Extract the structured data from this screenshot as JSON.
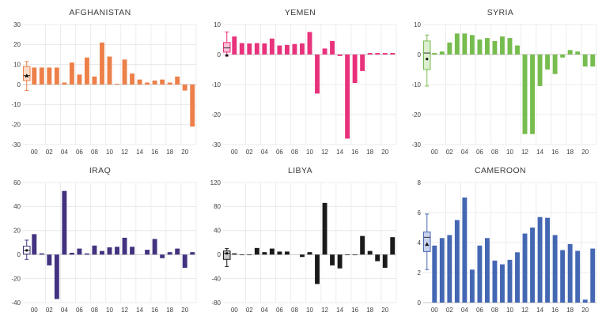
{
  "page": {
    "background": "#ffffff"
  },
  "chart_data": [
    {
      "type": "bar",
      "title": "AFGHANISTAN",
      "color": "#ED8049",
      "ylim": [
        -30,
        30
      ],
      "ytick": 10,
      "xticklabels": [
        "00",
        "02",
        "04",
        "06",
        "08",
        "10",
        "12",
        "14",
        "16",
        "18",
        "20"
      ],
      "years": [
        "00",
        "01",
        "02",
        "03",
        "04",
        "05",
        "06",
        "07",
        "08",
        "09",
        "10",
        "11",
        "12",
        "13",
        "14",
        "15",
        "16",
        "17",
        "18",
        "19",
        "20",
        "21"
      ],
      "values": [
        8.5,
        8.5,
        8.5,
        8.5,
        1,
        11,
        5,
        13.5,
        4,
        21,
        14,
        0.4,
        12.5,
        5.5,
        2.5,
        1,
        2,
        2.5,
        1,
        4,
        -3,
        -21
      ],
      "box": {
        "lo": -3,
        "q1": 2,
        "med": 4.5,
        "q3": 9,
        "hi": 11.5,
        "marker": 4.5,
        "marker_shape": "triangle",
        "fill": "#FBDDC9",
        "stroke": "#ED8049"
      }
    },
    {
      "type": "bar",
      "title": "YEMEN",
      "color": "#E8327C",
      "ylim": [
        -30,
        10
      ],
      "ytick": 10,
      "xticklabels": [
        "00",
        "02",
        "04",
        "06",
        "08",
        "10",
        "12",
        "14",
        "16",
        "18",
        "20"
      ],
      "years": [
        "00",
        "01",
        "02",
        "03",
        "04",
        "05",
        "06",
        "07",
        "08",
        "09",
        "10",
        "11",
        "12",
        "13",
        "14",
        "15",
        "16",
        "17",
        "18",
        "19",
        "20",
        "21"
      ],
      "values": [
        6,
        3.8,
        3.7,
        3.8,
        3.7,
        5.3,
        3,
        3.2,
        3.5,
        3.7,
        7.5,
        -13,
        2,
        4.5,
        -0.5,
        -28,
        -9.5,
        -5.5,
        0.5,
        0.5,
        0.5,
        0.5
      ],
      "box": {
        "lo": -0.5,
        "q1": 0.8,
        "med": 2.2,
        "q3": 4,
        "hi": 7.5,
        "marker": -0.3,
        "marker_shape": "dot",
        "fill": "#F8C0D8",
        "stroke": "#E8327C"
      }
    },
    {
      "type": "bar",
      "title": "SYRIA",
      "color": "#77BC4F",
      "ylim": [
        -30,
        10
      ],
      "ytick": 10,
      "xticklabels": [
        "00",
        "02",
        "04",
        "06",
        "08",
        "10",
        "12",
        "14",
        "16",
        "18",
        "20"
      ],
      "years": [
        "00",
        "01",
        "02",
        "03",
        "04",
        "05",
        "06",
        "07",
        "08",
        "09",
        "10",
        "11",
        "12",
        "13",
        "14",
        "15",
        "16",
        "17",
        "18",
        "19",
        "20",
        "21"
      ],
      "values": [
        0.5,
        1,
        4,
        7,
        7,
        6.5,
        5,
        5.5,
        4.5,
        6,
        5.5,
        3,
        -26.5,
        -26.5,
        -10.5,
        -5,
        -6.5,
        -1,
        1.5,
        1,
        -4,
        -4
      ],
      "box": {
        "lo": -10.5,
        "q1": -5,
        "med": 0.5,
        "q3": 4.5,
        "hi": 6.5,
        "marker": -1.5,
        "marker_shape": "dot",
        "fill": "#DCEFD0",
        "stroke": "#77BC4F"
      }
    },
    {
      "type": "bar",
      "title": "IRAQ",
      "color": "#433280",
      "ylim": [
        -40,
        60
      ],
      "ytick": 20,
      "xticklabels": [
        "00",
        "02",
        "04",
        "06",
        "08",
        "10",
        "12",
        "14",
        "16",
        "18",
        "20"
      ],
      "years": [
        "00",
        "01",
        "02",
        "03",
        "04",
        "05",
        "06",
        "07",
        "08",
        "09",
        "10",
        "11",
        "12",
        "13",
        "14",
        "15",
        "16",
        "17",
        "18",
        "19",
        "20",
        "21"
      ],
      "values": [
        17,
        1,
        -9,
        -37,
        53,
        1.5,
        5,
        1,
        7.5,
        3,
        6,
        6.5,
        14,
        6.5,
        0,
        4,
        13,
        -3,
        2,
        5,
        -11,
        2
      ],
      "box": {
        "lo": -4,
        "q1": 0.5,
        "med": 3.5,
        "q3": 7,
        "hi": 12,
        "marker": 3.5,
        "marker_shape": "dot",
        "fill": "#ffffff",
        "stroke": "#433280"
      }
    },
    {
      "type": "bar",
      "title": "LIBYA",
      "color": "#1A1A1A",
      "ylim": [
        -80,
        120
      ],
      "ytick": 40,
      "xticklabels": [
        "00",
        "02",
        "04",
        "06",
        "08",
        "10",
        "12",
        "14",
        "16",
        "18",
        "20"
      ],
      "years": [
        "00",
        "01",
        "02",
        "03",
        "04",
        "05",
        "06",
        "07",
        "08",
        "09",
        "10",
        "11",
        "12",
        "13",
        "14",
        "15",
        "16",
        "17",
        "18",
        "19",
        "20",
        "21"
      ],
      "values": [
        2,
        -1,
        -1,
        11,
        4,
        10,
        5,
        5,
        0,
        -4,
        4,
        -49,
        86,
        -18,
        -23,
        -1,
        -1,
        31,
        6,
        -11,
        -22,
        29
      ],
      "box": {
        "lo": -20,
        "q1": -8,
        "med": 2,
        "q3": 6,
        "hi": 10,
        "marker": 2,
        "marker_shape": "dot",
        "fill": "#C9C9C9",
        "stroke": "#1A1A1A"
      }
    },
    {
      "type": "bar",
      "title": "CAMEROON",
      "color": "#4467B3",
      "ylim": [
        0,
        8
      ],
      "ytick": 2,
      "xticklabels": [
        "00",
        "02",
        "04",
        "06",
        "08",
        "10",
        "12",
        "14",
        "16",
        "18",
        "20"
      ],
      "years": [
        "00",
        "01",
        "02",
        "03",
        "04",
        "05",
        "06",
        "07",
        "08",
        "09",
        "10",
        "11",
        "12",
        "13",
        "14",
        "15",
        "16",
        "17",
        "18",
        "19",
        "20",
        "21"
      ],
      "values": [
        3.8,
        4.3,
        4.5,
        5.5,
        7,
        2.2,
        3.8,
        4.3,
        2.8,
        2.55,
        2.85,
        3.35,
        4.6,
        5,
        5.7,
        5.65,
        4.5,
        3.5,
        3.9,
        3.45,
        0.2,
        3.6
      ],
      "box": {
        "lo": 2.2,
        "q1": 3.4,
        "med": 4.35,
        "q3": 4.7,
        "hi": 5.9,
        "marker": 3.9,
        "marker_shape": "triangle",
        "fill": "#C9D2EC",
        "stroke": "#4467B3"
      }
    }
  ]
}
